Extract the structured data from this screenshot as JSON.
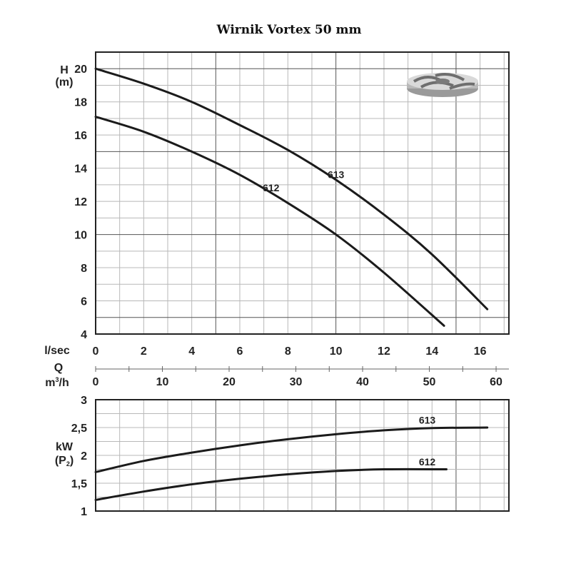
{
  "title": "Wirnik Vortex 50 mm",
  "chart_data": [
    {
      "type": "line",
      "name": "head",
      "ylabel_line1": "H",
      "ylabel_line2": "(m)",
      "xlabel": "l/sec",
      "xlim": [
        0,
        17.2
      ],
      "ylim": [
        4,
        21
      ],
      "xticks": [
        0,
        2,
        4,
        6,
        8,
        10,
        12,
        14,
        16
      ],
      "yticks": [
        4,
        6,
        8,
        10,
        12,
        14,
        16,
        18,
        20
      ],
      "series": [
        {
          "name": "613",
          "label_at": [
            10.0,
            13.4
          ],
          "x": [
            0,
            2,
            4,
            6,
            8,
            10,
            12,
            14,
            16.3
          ],
          "y": [
            20.0,
            19.1,
            18.0,
            16.6,
            15.1,
            13.3,
            11.2,
            8.8,
            5.5
          ]
        },
        {
          "name": "612",
          "label_at": [
            7.3,
            12.6
          ],
          "x": [
            0,
            2,
            4,
            6,
            8,
            10,
            12,
            14.5
          ],
          "y": [
            17.1,
            16.2,
            15.0,
            13.6,
            11.9,
            10.0,
            7.7,
            4.5
          ]
        }
      ]
    },
    {
      "type": "line",
      "name": "power",
      "ylabel_line1": "kW",
      "ylabel_line2_main": "(P",
      "ylabel_line2_sub": "2",
      "ylabel_line2_end": ")",
      "xlim": [
        0,
        17.2
      ],
      "ylim": [
        1,
        3
      ],
      "yticks": [
        1,
        1.5,
        2,
        2.5,
        3
      ],
      "ytick_labels": [
        "1",
        "1,5",
        "2",
        "2,5",
        "3"
      ],
      "series": [
        {
          "name": "613",
          "label_at": [
            13.8,
            2.57
          ],
          "x": [
            0,
            2,
            4,
            6,
            8,
            10,
            12,
            14,
            16.3
          ],
          "y": [
            1.7,
            1.9,
            2.05,
            2.18,
            2.29,
            2.38,
            2.45,
            2.49,
            2.5
          ]
        },
        {
          "name": "612",
          "label_at": [
            13.8,
            1.82
          ],
          "x": [
            0,
            2,
            4,
            6,
            8,
            10,
            12,
            14.6
          ],
          "y": [
            1.2,
            1.35,
            1.48,
            1.58,
            1.66,
            1.72,
            1.75,
            1.75
          ]
        }
      ]
    }
  ],
  "flow_scale": {
    "label_line1": "Q",
    "label_line2_main": "m",
    "label_line2_sup": "3",
    "label_line2_end": "/h",
    "ticks": [
      0,
      10,
      20,
      30,
      40,
      50,
      60
    ],
    "max": 61.92
  }
}
